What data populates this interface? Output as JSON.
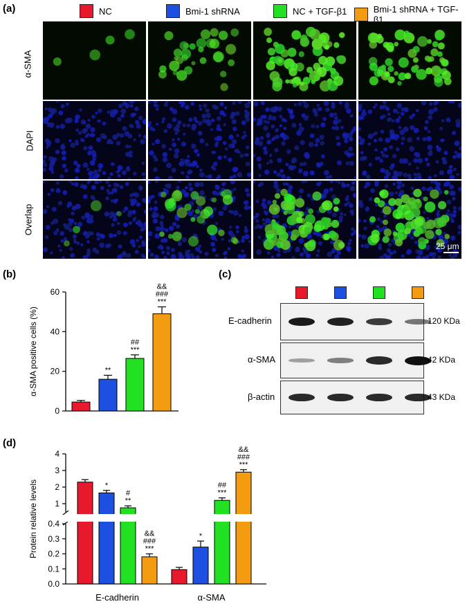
{
  "panels": {
    "a": "(a)",
    "b": "(b)",
    "c": "(c)",
    "d": "(d)"
  },
  "legend": [
    {
      "label": "NC",
      "color": "#e8192c"
    },
    {
      "label": "Bmi-1 shRNA",
      "color": "#1d4fe0"
    },
    {
      "label": "NC + TGF-β1",
      "color": "#22e022"
    },
    {
      "label": "Bmi-1 shRNA + TGF-β1",
      "color": "#f39c12"
    }
  ],
  "microscopy": {
    "rows": [
      "α-SMA",
      "DAPI",
      "Overlap"
    ],
    "scale_bar": "25 μm",
    "green_intensity": [
      0.05,
      0.35,
      0.75,
      0.7
    ]
  },
  "western": {
    "colors": [
      "#e8192c",
      "#1d4fe0",
      "#22e022",
      "#f39c12"
    ],
    "rows": [
      {
        "name": "E-cadherin",
        "kda": "120 KDa",
        "intensity": [
          0.95,
          0.9,
          0.75,
          0.4
        ]
      },
      {
        "name": "α-SMA",
        "kda": "42 KDa",
        "intensity": [
          0.15,
          0.35,
          0.85,
          1.0
        ]
      },
      {
        "name": "β-actin",
        "kda": "43 KDa",
        "intensity": [
          0.85,
          0.85,
          0.85,
          0.85
        ]
      }
    ]
  },
  "chart_data": [
    {
      "type": "bar",
      "ylabel": "α-SMA positive cells (%)",
      "ylim": [
        0,
        60
      ],
      "yticks": [
        0,
        20,
        40,
        60
      ],
      "series": [
        {
          "values": [
            4.5,
            16,
            26.5,
            49
          ],
          "errors": [
            0.8,
            2,
            1.8,
            3.5
          ]
        }
      ],
      "colors": [
        "#e8192c",
        "#1d4fe0",
        "#22e022",
        "#f39c12"
      ],
      "annotations": [
        [],
        [
          "**"
        ],
        [
          "##",
          "***"
        ],
        [
          "&&",
          "###",
          "***"
        ]
      ]
    },
    {
      "type": "bar",
      "ylabel": "Protein relative levels",
      "categories": [
        "E-cadherin",
        "α-SMA"
      ],
      "yticks_upper": [
        1,
        2,
        3,
        4
      ],
      "yticks_lower": [
        0.0,
        0.1,
        0.2,
        0.3,
        0.4
      ],
      "series": [
        {
          "values": [
            2.3,
            0.095
          ],
          "errors": [
            0.15,
            0.015
          ]
        },
        {
          "values": [
            1.65,
            0.245
          ],
          "errors": [
            0.15,
            0.04
          ]
        },
        {
          "values": [
            0.75,
            1.2
          ],
          "errors": [
            0.12,
            0.15
          ]
        },
        {
          "values": [
            0.18,
            2.9
          ],
          "errors": [
            0.02,
            0.15
          ]
        }
      ],
      "colors": [
        "#e8192c",
        "#1d4fe0",
        "#22e022",
        "#f39c12"
      ],
      "annotations": [
        [
          [],
          []
        ],
        [
          [
            "*"
          ],
          [
            "*"
          ]
        ],
        [
          [
            "#",
            "**"
          ],
          [
            "##",
            "***"
          ]
        ],
        [
          [
            "&&",
            "###",
            "***"
          ],
          [
            "&&",
            "###",
            "***"
          ]
        ]
      ]
    }
  ]
}
